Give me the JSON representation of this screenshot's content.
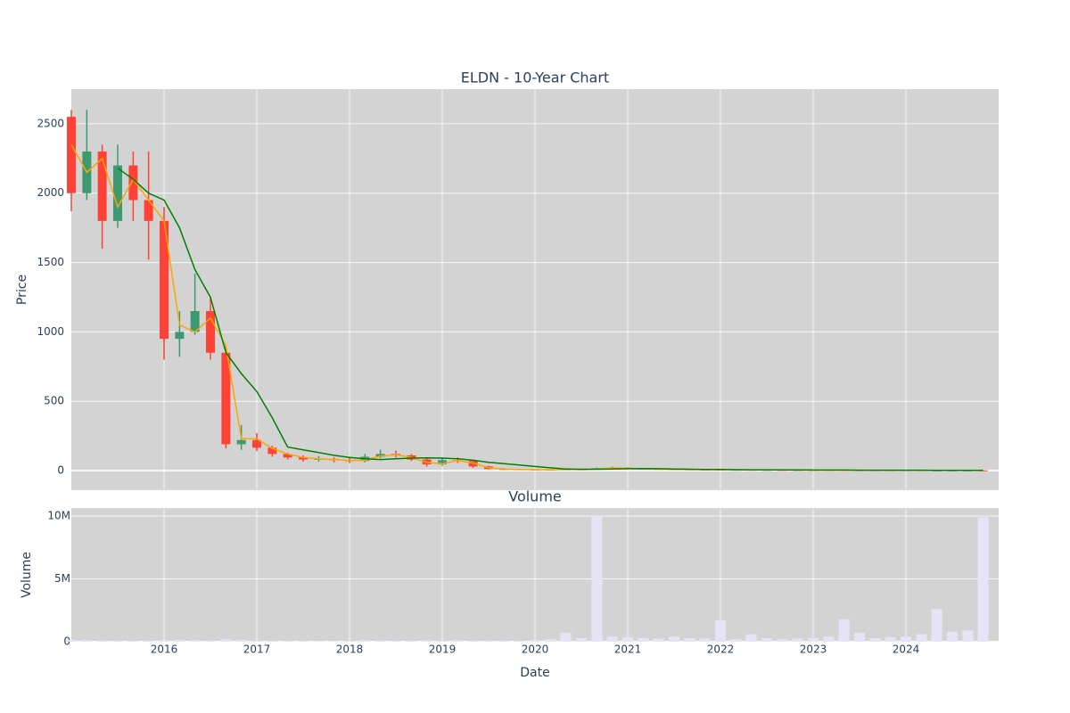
{
  "chart_data": [
    {
      "type": "candlestick",
      "title": "ELDN - 10-Year Chart",
      "ylabel": "Price",
      "x": [
        2015,
        2015.167,
        2015.333,
        2015.5,
        2015.667,
        2015.833,
        2016,
        2016.167,
        2016.333,
        2016.5,
        2016.667,
        2016.833,
        2017,
        2017.167,
        2017.333,
        2017.5,
        2017.667,
        2017.833,
        2018,
        2018.167,
        2018.333,
        2018.5,
        2018.667,
        2018.833,
        2019,
        2019.167,
        2019.333,
        2019.5,
        2019.667,
        2019.833,
        2020,
        2020.167,
        2020.333,
        2020.5,
        2020.667,
        2020.833,
        2021,
        2021.167,
        2021.333,
        2021.5,
        2021.667,
        2021.833,
        2022,
        2022.167,
        2022.333,
        2022.5,
        2022.667,
        2022.833,
        2023,
        2023.167,
        2023.333,
        2023.5,
        2023.667,
        2023.833,
        2024,
        2024.167,
        2024.333,
        2024.5,
        2024.667,
        2024.833
      ],
      "open": [
        2550,
        2000,
        2300,
        1800,
        2200,
        1950,
        1800,
        950,
        1000,
        1150,
        850,
        190,
        220,
        165,
        120,
        95,
        80,
        85,
        75,
        70,
        100,
        120,
        110,
        80,
        45,
        75,
        70,
        30,
        12,
        10,
        8,
        6,
        7,
        9,
        8,
        18,
        20,
        15,
        12,
        10,
        9,
        8,
        7,
        6,
        6,
        5,
        5,
        4,
        4,
        3,
        4,
        3,
        3,
        3,
        2,
        3,
        2,
        2,
        2,
        2
      ],
      "close": [
        2000,
        2300,
        1800,
        2200,
        1950,
        1800,
        950,
        1000,
        1150,
        850,
        190,
        220,
        165,
        120,
        95,
        80,
        85,
        75,
        70,
        100,
        120,
        110,
        80,
        45,
        75,
        70,
        30,
        12,
        10,
        8,
        6,
        7,
        9,
        8,
        18,
        20,
        15,
        12,
        10,
        9,
        8,
        7,
        6,
        6,
        5,
        5,
        4,
        4,
        3,
        4,
        3,
        3,
        3,
        2,
        3,
        2,
        2,
        2,
        2,
        1
      ],
      "high": [
        2600,
        2600,
        2350,
        2350,
        2300,
        2300,
        1900,
        1150,
        1420,
        1250,
        900,
        330,
        270,
        180,
        130,
        110,
        105,
        95,
        90,
        120,
        150,
        145,
        120,
        90,
        95,
        95,
        80,
        35,
        18,
        14,
        10,
        9,
        12,
        11,
        22,
        28,
        25,
        18,
        15,
        12,
        11,
        10,
        9,
        8,
        8,
        7,
        6,
        6,
        5,
        6,
        5,
        5,
        4,
        4,
        5,
        4,
        3,
        3,
        3,
        3
      ],
      "low": [
        1870,
        1950,
        1600,
        1750,
        1800,
        1520,
        800,
        820,
        980,
        800,
        160,
        150,
        140,
        100,
        80,
        65,
        65,
        60,
        55,
        60,
        90,
        95,
        70,
        30,
        35,
        55,
        20,
        8,
        5,
        4,
        3,
        4,
        5,
        6,
        7,
        12,
        10,
        9,
        8,
        7,
        6,
        5,
        4,
        4,
        3,
        3,
        3,
        2,
        2,
        2,
        2,
        2,
        1,
        1,
        1,
        1,
        1,
        1,
        1,
        0.5
      ],
      "increasing_color": "#3d9970",
      "decreasing_color": "#ff4136",
      "lines": [
        {
          "color": "orange",
          "values": [
            2350,
            2150,
            2250,
            1900,
            2100,
            1950,
            1800,
            1050,
            1000,
            1100,
            900,
            230,
            230,
            160,
            120,
            95,
            85,
            80,
            72,
            75,
            105,
            115,
            95,
            60,
            50,
            72,
            55,
            20,
            11,
            9,
            7,
            6,
            8,
            8,
            12,
            19,
            17,
            13,
            11,
            9,
            8,
            7,
            6,
            6,
            5,
            5,
            4,
            4,
            3,
            3,
            3,
            3,
            3,
            2,
            2,
            2,
            2,
            2,
            2,
            1
          ]
        },
        {
          "color": "green",
          "values": [
            null,
            null,
            null,
            2180,
            2100,
            2000,
            1950,
            1750,
            1450,
            1250,
            850,
            700,
            570,
            380,
            170,
            150,
            130,
            110,
            95,
            85,
            80,
            85,
            90,
            92,
            90,
            85,
            75,
            60,
            50,
            40,
            30,
            20,
            12,
            10,
            10,
            12,
            14,
            15,
            14,
            12,
            10,
            9,
            8,
            7,
            6,
            6,
            5,
            5,
            4,
            4,
            4,
            3,
            3,
            3,
            3,
            3,
            2,
            2,
            2,
            2
          ]
        }
      ],
      "xlim": [
        2015,
        2025
      ],
      "xticks": [
        2016,
        2017,
        2018,
        2019,
        2020,
        2021,
        2022,
        2023,
        2024
      ],
      "ylim": [
        -141,
        2750
      ],
      "yticks": [
        0,
        500,
        1000,
        1500,
        2000,
        2500
      ],
      "grid": true
    },
    {
      "type": "bar",
      "title": "Volume",
      "ylabel": "Volume",
      "xlabel": "Date",
      "color": "#e4e4f6",
      "x": [
        2015,
        2015.167,
        2015.333,
        2015.5,
        2015.667,
        2015.833,
        2016,
        2016.167,
        2016.333,
        2016.5,
        2016.667,
        2016.833,
        2017,
        2017.167,
        2017.333,
        2017.5,
        2017.667,
        2017.833,
        2018,
        2018.167,
        2018.333,
        2018.5,
        2018.667,
        2018.833,
        2019,
        2019.167,
        2019.333,
        2019.5,
        2019.667,
        2019.833,
        2020,
        2020.167,
        2020.333,
        2020.5,
        2020.667,
        2020.833,
        2021,
        2021.167,
        2021.333,
        2021.5,
        2021.667,
        2021.833,
        2022,
        2022.167,
        2022.333,
        2022.5,
        2022.667,
        2022.833,
        2023,
        2023.167,
        2023.333,
        2023.5,
        2023.667,
        2023.833,
        2024,
        2024.167,
        2024.333,
        2024.5,
        2024.667,
        2024.833
      ],
      "values": [
        150000,
        120000,
        100000,
        90000,
        80000,
        90000,
        110000,
        150000,
        120000,
        100000,
        200000,
        150000,
        80000,
        70000,
        60000,
        60000,
        50000,
        50000,
        60000,
        120000,
        100000,
        80000,
        90000,
        100000,
        80000,
        120000,
        90000,
        100000,
        90000,
        80000,
        150000,
        200000,
        700000,
        300000,
        10000000,
        400000,
        350000,
        300000,
        250000,
        400000,
        300000,
        250000,
        1700000,
        200000,
        600000,
        300000,
        200000,
        250000,
        300000,
        400000,
        1800000,
        700000,
        300000,
        350000,
        400000,
        600000,
        2600000,
        800000,
        900000,
        9900000
      ],
      "xlim": [
        2015,
        2025
      ],
      "xticks": [
        2016,
        2017,
        2018,
        2019,
        2020,
        2021,
        2022,
        2023,
        2024
      ],
      "ylim": [
        0,
        10640000
      ],
      "yticks": [
        0,
        {
          "value": 5000000,
          "label": "5M"
        },
        {
          "value": 10000000,
          "label": "10M"
        }
      ],
      "grid": true
    }
  ]
}
